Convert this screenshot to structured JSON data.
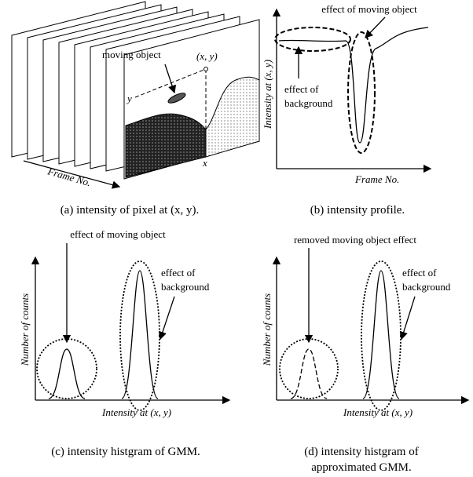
{
  "panels": [
    {
      "caption": "(a) intensity of pixel at (x, y).",
      "moving_object": "moving object",
      "point": "(x, y)",
      "y_label": "y",
      "x_label": "x",
      "axis": "Frame No."
    },
    {
      "caption": "(b) intensity profile.",
      "annotation_top": "effect of moving object",
      "y_axis": "Intensity at (x, y)",
      "annotation_lines": [
        "effect of",
        "background"
      ],
      "x_axis": "Frame No."
    },
    {
      "caption": "(c) intensity histgram of GMM.",
      "annotation_top": "effect of moving object",
      "y_axis": "Number of counts",
      "annotation_lines": [
        "effect of",
        "background"
      ],
      "x_axis": "Intensity at (x, y)"
    },
    {
      "caption_lines": [
        "(d) intensity histgram of",
        "approximated GMM."
      ],
      "annotation_top": "removed moving object effect",
      "y_axis": "Number of counts",
      "annotation_lines": [
        "effect of",
        "background"
      ],
      "x_axis": "Intensity at (x, y)"
    }
  ]
}
